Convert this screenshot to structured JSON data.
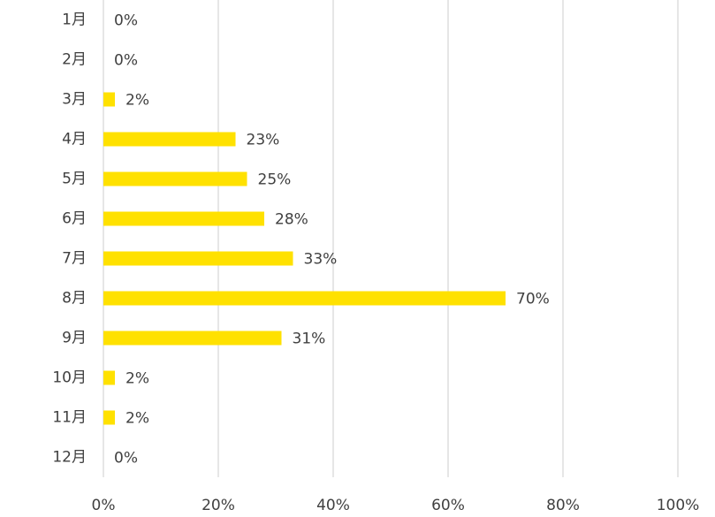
{
  "chart_data": {
    "type": "bar",
    "orientation": "horizontal",
    "categories": [
      "1月",
      "2月",
      "3月",
      "4月",
      "5月",
      "6月",
      "7月",
      "8月",
      "9月",
      "10月",
      "11月",
      "12月"
    ],
    "values": [
      0,
      0,
      2,
      23,
      25,
      28,
      33,
      70,
      31,
      2,
      2,
      0
    ],
    "value_labels": [
      "0%",
      "0%",
      "2%",
      "23%",
      "25%",
      "28%",
      "33%",
      "70%",
      "31%",
      "2%",
      "2%",
      "0%"
    ],
    "color": "#ffe100",
    "xlim": [
      0,
      100
    ],
    "xticks": [
      {
        "value": 0,
        "label": "0%"
      },
      {
        "value": 20,
        "label": "20%"
      },
      {
        "value": 40,
        "label": "40%"
      },
      {
        "value": 60,
        "label": "60%"
      },
      {
        "value": 80,
        "label": "80%"
      },
      {
        "value": 100,
        "label": "100%"
      }
    ],
    "grid": true
  }
}
